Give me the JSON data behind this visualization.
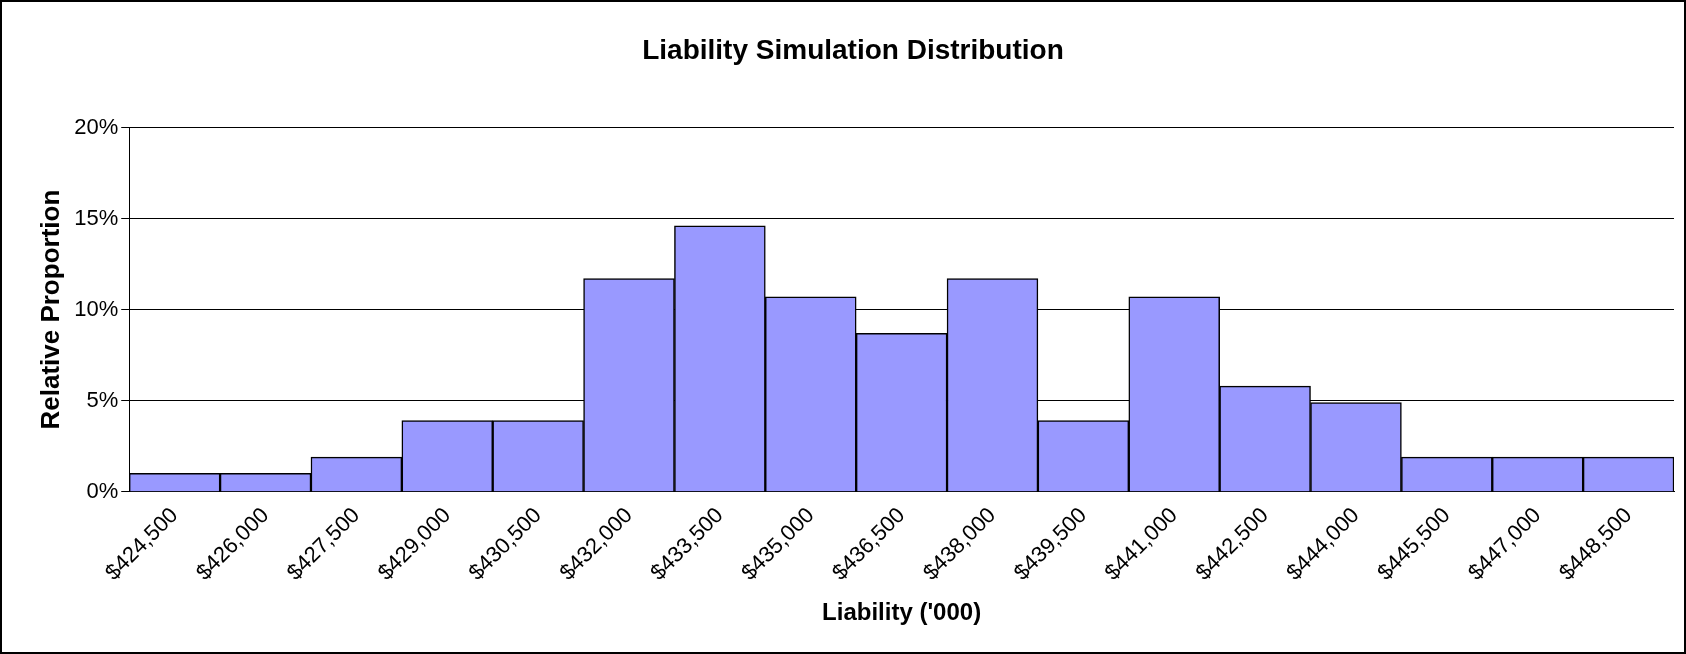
{
  "chart_data": {
    "type": "bar",
    "title": "Liability Simulation Distribution",
    "xlabel": "Liability ('000)",
    "ylabel": "Relative Proportion",
    "categories": [
      "$424,500",
      "$426,000",
      "$427,500",
      "$429,000",
      "$430,500",
      "$432,000",
      "$433,500",
      "$435,000",
      "$436,500",
      "$438,000",
      "$439,500",
      "$441,000",
      "$442,500",
      "$444,000",
      "$445,500",
      "$447,000",
      "$448,500"
    ],
    "values": [
      1,
      1,
      1.9,
      3.9,
      3.9,
      11.7,
      14.6,
      10.7,
      8.7,
      11.7,
      3.9,
      10.7,
      5.8,
      4.9,
      1.9,
      1.9,
      1.9
    ],
    "color": "#9999ff",
    "ylim": [
      0,
      20
    ],
    "yticks": [
      {
        "value": 0,
        "label": "0%"
      },
      {
        "value": 5,
        "label": "5%"
      },
      {
        "value": 10,
        "label": "10%"
      },
      {
        "value": 15,
        "label": "15%"
      },
      {
        "value": 20,
        "label": "20%"
      }
    ],
    "grid": "y",
    "legend": false
  }
}
